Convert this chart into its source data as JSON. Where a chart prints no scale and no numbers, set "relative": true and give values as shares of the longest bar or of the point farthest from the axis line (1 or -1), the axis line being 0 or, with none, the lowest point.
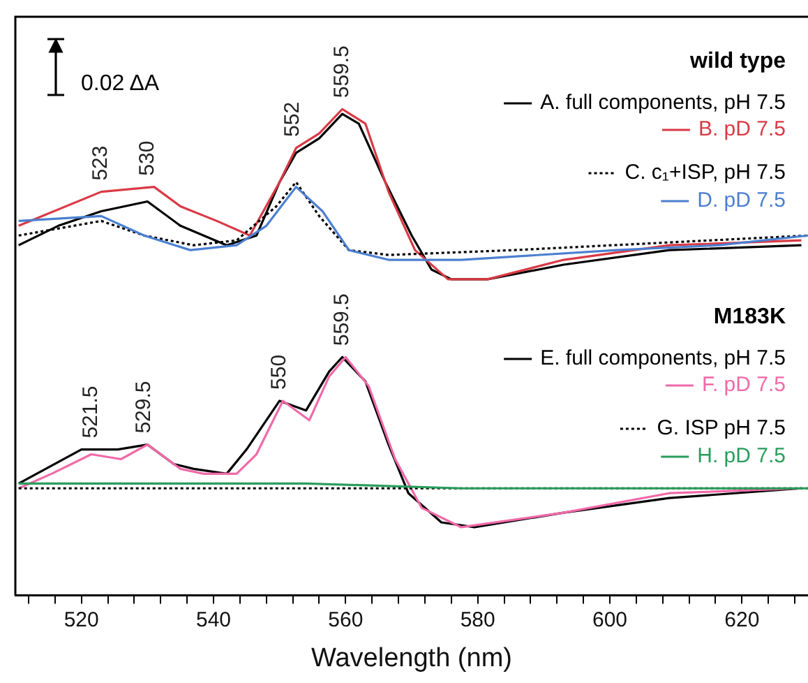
{
  "chart_data": {
    "type": "line",
    "relative": true,
    "xlabel": "Wavelength (nm)",
    "xlim": [
      510,
      630
    ],
    "xticks": [
      {
        "value": 512,
        "label": null
      },
      {
        "value": 516,
        "label": null
      },
      520,
      {
        "value": 524,
        "label": null
      },
      {
        "value": 528,
        "label": null
      },
      {
        "value": 532,
        "label": null
      },
      {
        "value": 536,
        "label": null
      },
      540,
      {
        "value": 544,
        "label": null
      },
      {
        "value": 548,
        "label": null
      },
      {
        "value": 552,
        "label": null
      },
      {
        "value": 556,
        "label": null
      },
      560,
      {
        "value": 564,
        "label": null
      },
      {
        "value": 568,
        "label": null
      },
      {
        "value": 572,
        "label": null
      },
      {
        "value": 576,
        "label": null
      },
      580,
      {
        "value": 584,
        "label": null
      },
      {
        "value": 588,
        "label": null
      },
      {
        "value": 592,
        "label": null
      },
      {
        "value": 596,
        "label": null
      },
      600,
      {
        "value": 604,
        "label": null
      },
      {
        "value": 608,
        "label": null
      },
      {
        "value": 612,
        "label": null
      },
      {
        "value": 616,
        "label": null
      },
      620,
      {
        "value": 624,
        "label": null
      },
      {
        "value": 628,
        "label": null
      }
    ],
    "grid": false,
    "legend": "top right",
    "marker": "none",
    "series": [
      {
        "name": "A. full components, pH 7.5",
        "color": "#000000",
        "line_style": "solid",
        "x": [
          510.5,
          516.5,
          523,
          530,
          535,
          542,
          546.5,
          550,
          552.5,
          556,
          559.5,
          562,
          566,
          570,
          573,
          576,
          581.5,
          593,
          609,
          629
        ],
        "values": [
          0.72,
          0.76,
          0.79,
          0.81,
          0.76,
          0.72,
          0.74,
          0.85,
          0.91,
          0.94,
          0.99,
          0.97,
          0.85,
          0.74,
          0.67,
          0.65,
          0.65,
          0.68,
          0.71,
          0.72
        ]
      },
      {
        "name": "B. pD 7.5",
        "color": "#d93a45",
        "line_style": "solid",
        "x": [
          510.5,
          523,
          531,
          535,
          540.5,
          545.5,
          550,
          552.5,
          556,
          559.5,
          563,
          566.5,
          570.5,
          575.5,
          581.5,
          593,
          609,
          629
        ],
        "values": [
          0.76,
          0.83,
          0.84,
          0.8,
          0.77,
          0.74,
          0.85,
          0.92,
          0.95,
          1,
          0.97,
          0.83,
          0.71,
          0.65,
          0.65,
          0.69,
          0.72,
          0.73
        ]
      },
      {
        "name": "C. c₁+ISP, pH 7.5",
        "color": "#000000",
        "line_style": "dotted",
        "x": [
          510.5,
          523,
          529.5,
          537,
          543.5,
          549.5,
          552.5,
          556,
          560.5,
          566.5,
          585.5,
          630
        ],
        "values": [
          0.74,
          0.77,
          0.74,
          0.72,
          0.73,
          0.8,
          0.85,
          0.78,
          0.71,
          0.7,
          0.71,
          0.74
        ]
      },
      {
        "name": "D. pD 7.5",
        "color": "#4b7fd0",
        "line_style": "solid",
        "x": [
          510.5,
          523,
          529.5,
          536.5,
          543.5,
          548,
          552.5,
          556.5,
          560.5,
          566.5,
          577.5,
          601,
          616.5,
          630
        ],
        "values": [
          0.77,
          0.78,
          0.74,
          0.71,
          0.72,
          0.76,
          0.84,
          0.79,
          0.71,
          0.69,
          0.69,
          0.71,
          0.72,
          0.74
        ]
      },
      {
        "name": "E. full components, pH 7.5",
        "color": "#000000",
        "line_style": "solid",
        "x": [
          510.5,
          520,
          525.5,
          530,
          534,
          537,
          542,
          545,
          550,
          554,
          557.5,
          559.5,
          563,
          566.5,
          569.5,
          574.5,
          579.5,
          593,
          609,
          629
        ],
        "values": [
          0.23,
          0.3,
          0.3,
          0.31,
          0.27,
          0.26,
          0.25,
          0.3,
          0.4,
          0.38,
          0.46,
          0.49,
          0.44,
          0.31,
          0.21,
          0.15,
          0.14,
          0.17,
          0.2,
          0.22
        ]
      },
      {
        "name": "F. pD 7.5",
        "color": "#f06aa8",
        "line_style": "solid",
        "x": [
          510.5,
          515.5,
          521.5,
          526,
          530,
          535,
          538.5,
          543.5,
          546.5,
          550.5,
          554.5,
          557.5,
          560,
          563.5,
          567.5,
          571.5,
          577.5,
          593,
          609,
          629
        ],
        "values": [
          0.22,
          0.25,
          0.29,
          0.28,
          0.31,
          0.26,
          0.25,
          0.25,
          0.29,
          0.4,
          0.36,
          0.45,
          0.49,
          0.43,
          0.28,
          0.18,
          0.14,
          0.17,
          0.21,
          0.22
        ]
      },
      {
        "name": "G. ISP pH 7.5",
        "color": "#000000",
        "line_style": "dotted",
        "x": [
          510.5,
          562,
          630
        ],
        "values": [
          0.22,
          0.22,
          0.22
        ]
      },
      {
        "name": "H. pD 7.5",
        "color": "#2a9d5c",
        "line_style": "solid",
        "x": [
          510.5,
          523,
          554,
          577.5,
          630
        ],
        "values": [
          0.23,
          0.23,
          0.23,
          0.22,
          0.22
        ]
      }
    ],
    "annotations": [
      "0.02 ΔA",
      "wild type",
      "M183K",
      {
        "text": "523",
        "x": 523,
        "y": 0.83
      },
      {
        "text": "530",
        "x": 530,
        "y": 0.84
      },
      {
        "text": "552",
        "x": 552,
        "y": 0.92
      },
      {
        "text": "559.5",
        "x": 559.5,
        "y": 1
      },
      {
        "text": "521.5",
        "x": 521.5,
        "y": 0.3
      },
      {
        "text": "529.5",
        "x": 529.5,
        "y": 0.31
      },
      {
        "text": "550",
        "x": 550,
        "y": 0.4
      },
      {
        "text": "559.5",
        "x": 559.5,
        "y": 0.49
      }
    ]
  }
}
